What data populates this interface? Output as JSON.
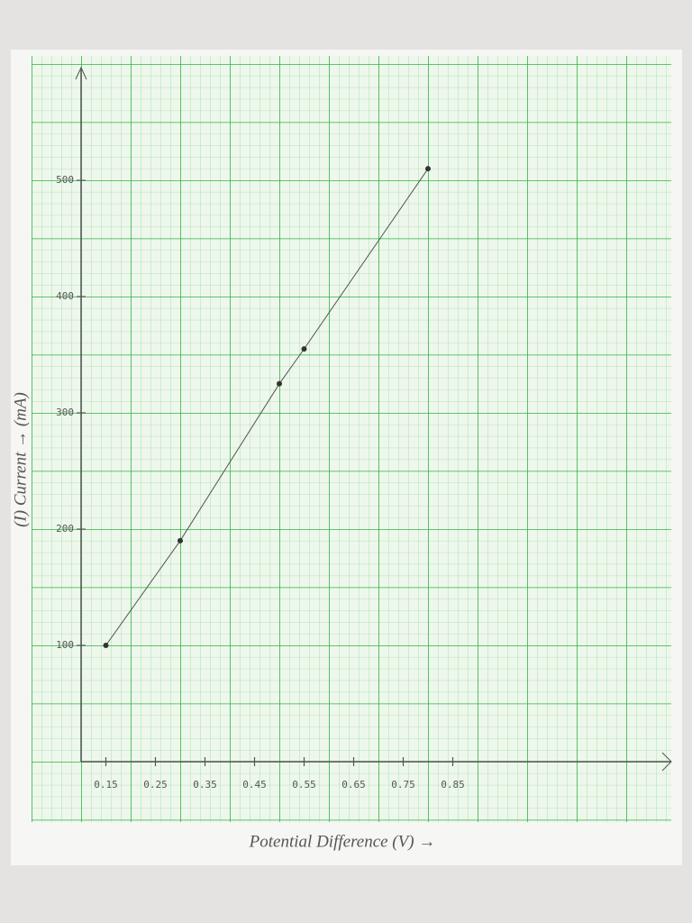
{
  "chart_data": {
    "type": "line",
    "x_label": "Potential Difference (V) →",
    "y_label": "(I) Current → (mA)",
    "x": [
      0.15,
      0.3,
      0.5,
      0.55,
      0.8
    ],
    "values": [
      100,
      190,
      325,
      355,
      510
    ],
    "color": "#555555",
    "xlim": [
      0.1,
      1.28
    ],
    "ylim": [
      0,
      590
    ],
    "xticks": [
      0.15,
      0.25,
      0.35,
      0.45,
      0.55,
      0.65,
      0.75,
      0.85
    ],
    "yticks": [
      100,
      200,
      300,
      400,
      500
    ]
  }
}
